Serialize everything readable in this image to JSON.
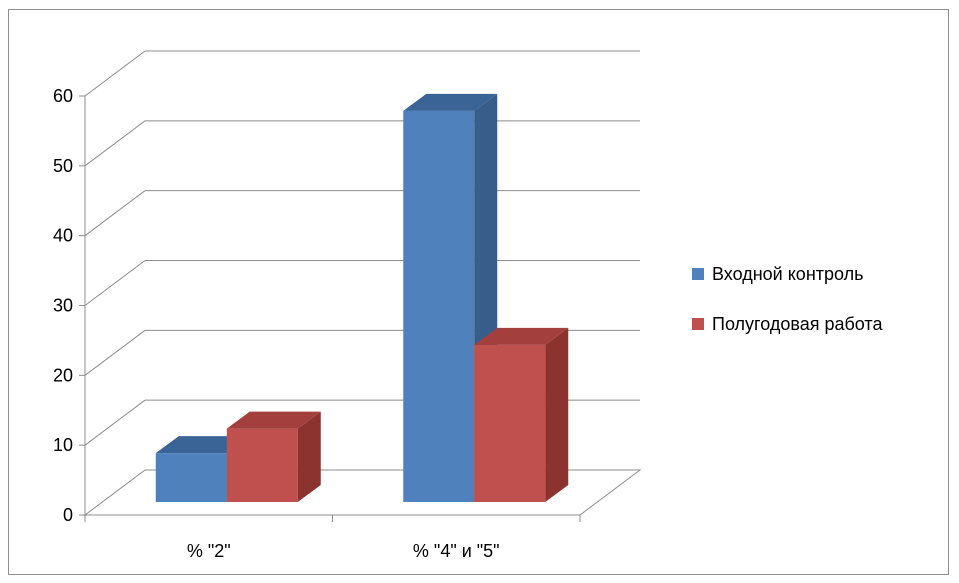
{
  "chart_data": {
    "type": "bar",
    "title": "",
    "xlabel": "",
    "ylabel": "",
    "categories": [
      "% \"2\"",
      "% \"4\" и \"5\""
    ],
    "series": [
      {
        "name": "Входной контроль",
        "values": [
          7,
          56
        ],
        "color": "#4F81BD",
        "side_color": "#385D8A",
        "top_color": "#3A6496"
      },
      {
        "name": "Полугодовая работа",
        "values": [
          10.5,
          22.5
        ],
        "color": "#C0504D",
        "side_color": "#8C3330",
        "top_color": "#A33F3C"
      }
    ],
    "yticks": [
      "0",
      "10",
      "20",
      "30",
      "40",
      "50",
      "60"
    ],
    "ylim": [
      0,
      60
    ],
    "grid": true,
    "style": "3d-clustered-column",
    "legend_position": "right"
  }
}
